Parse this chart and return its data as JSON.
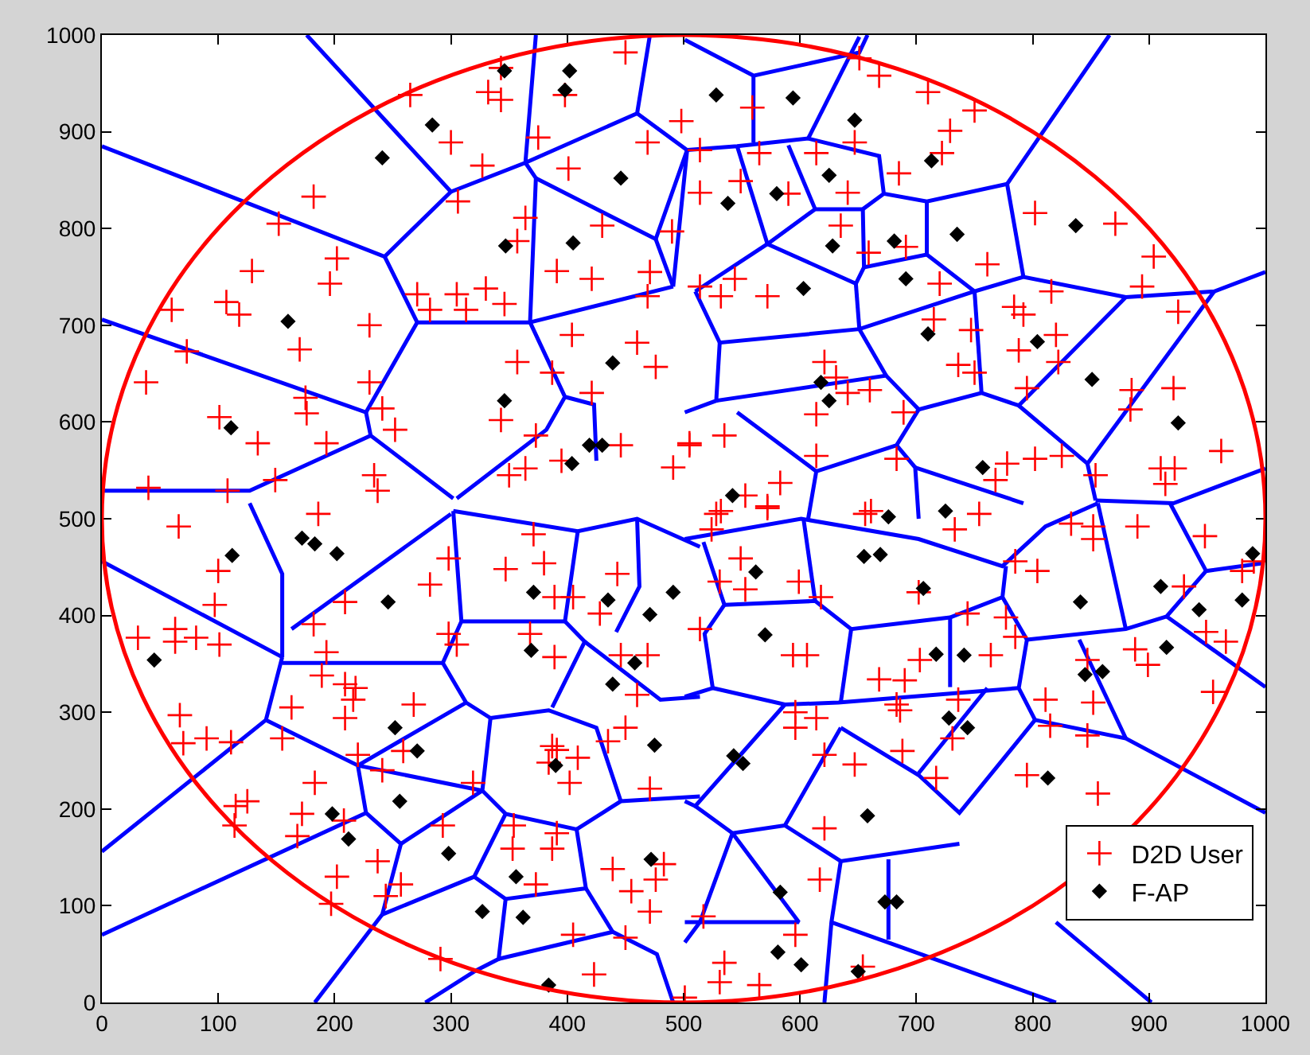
{
  "chart_data": {
    "type": "scatter",
    "xlim": [
      0,
      1000
    ],
    "ylim": [
      0,
      1000
    ],
    "xticks": [
      0,
      100,
      200,
      300,
      400,
      500,
      600,
      700,
      800,
      900,
      1000
    ],
    "yticks": [
      0,
      100,
      200,
      300,
      400,
      500,
      600,
      700,
      800,
      900,
      1000
    ],
    "legend": "bottom right",
    "series": [
      {
        "type": "line",
        "color": "#0000ff",
        "marker": "none",
        "x": [
          0,
          243,
          300,
          176,
          null,
          300,
          364,
          373,
          null,
          364,
          460,
          471,
          null,
          460,
          503,
          491,
          null,
          243,
          271,
          368,
          373,
          364,
          null,
          373,
          476,
          503,
          null,
          476,
          491,
          null,
          368,
          491,
          null,
          0,
          227,
          271,
          null,
          227,
          231,
          302,
          null,
          231,
          127,
          0,
          null,
          368,
          398,
          423,
          425,
          null,
          398,
          382,
          305
        ],
        "values": [
          885,
          771,
          838,
          1000,
          null,
          838,
          868,
          1000,
          null,
          868,
          919,
          1000,
          null,
          919,
          881,
          740,
          null,
          771,
          703,
          703,
          852,
          868,
          null,
          852,
          789,
          881,
          null,
          789,
          740,
          null,
          703,
          740,
          null,
          706,
          610,
          703,
          null,
          610,
          586,
          521,
          null,
          586,
          529,
          529,
          null,
          703,
          626,
          618,
          560,
          null,
          626,
          592,
          521
        ]
      },
      {
        "type": "line",
        "color": "#0000ff",
        "marker": "none",
        "x": [
          501,
          560,
          651,
          658,
          null,
          560,
          560,
          null,
          501,
          546,
          607,
          668,
          672,
          709,
          778,
          866,
          null,
          607,
          651,
          null,
          546,
          572,
          null,
          572,
          613,
          654,
          672,
          null,
          613,
          590,
          null,
          654,
          655,
          709,
          709,
          null,
          709,
          750,
          792,
          880,
          956,
          1000,
          null,
          778,
          792,
          null,
          572,
          648,
          655,
          null,
          572,
          510,
          null,
          510,
          531,
          651,
          750,
          null,
          651,
          648,
          null,
          750,
          756,
          null,
          531,
          528,
          501,
          null,
          528,
          674,
          702,
          756,
          788,
          880,
          null,
          674,
          651,
          null,
          788,
          847,
          854,
          null,
          847,
          956,
          null,
          854,
          921,
          1000,
          null,
          702,
          683,
          614,
          607,
          null,
          546,
          614,
          null,
          683,
          699,
          702,
          null,
          699,
          792
        ],
        "values": [
          995,
          958,
          982,
          1000,
          null,
          958,
          889,
          null,
          881,
          885,
          893,
          875,
          836,
          828,
          846,
          1000,
          null,
          893,
          998,
          null,
          885,
          784,
          null,
          784,
          820,
          820,
          836,
          null,
          820,
          886,
          null,
          820,
          760,
          773,
          828,
          null,
          773,
          735,
          750,
          729,
          735,
          755,
          null,
          846,
          750,
          null,
          784,
          743,
          760,
          null,
          784,
          735,
          null,
          735,
          682,
          696,
          735,
          null,
          696,
          743,
          null,
          735,
          630,
          null,
          682,
          622,
          610,
          null,
          622,
          648,
          613,
          630,
          617,
          729,
          null,
          648,
          696,
          null,
          617,
          557,
          519,
          null,
          557,
          735,
          null,
          519,
          516,
          552,
          null,
          613,
          576,
          549,
          500,
          null,
          610,
          549,
          null,
          576,
          553,
          500,
          null,
          553,
          516
        ]
      },
      {
        "type": "line",
        "color": "#0000ff",
        "marker": "none",
        "x": [
          0,
          155,
          null,
          155,
          155,
          127,
          null,
          155,
          141,
          0,
          null,
          155,
          293,
          309,
          302,
          null,
          163,
          300,
          null,
          309,
          398,
          409,
          null,
          302,
          409,
          460,
          514,
          null,
          460,
          462,
          442,
          null,
          398,
          415,
          387,
          null,
          415,
          480,
          514,
          null,
          293,
          313,
          334,
          null,
          141,
          220,
          227,
          0,
          null,
          220,
          313,
          null,
          220,
          327,
          null,
          334,
          327,
          347,
          408,
          446,
          514,
          null,
          334,
          384,
          425,
          446,
          null,
          227,
          257,
          241,
          null,
          257,
          327,
          null,
          347,
          320,
          241,
          null,
          320,
          347,
          341,
          320,
          null,
          347,
          416,
          408,
          null,
          341,
          439,
          477,
          491,
          null,
          416,
          439,
          null,
          241,
          183,
          null,
          320,
          278
        ],
        "values": [
          456,
          357,
          null,
          357,
          443,
          516,
          null,
          357,
          292,
          156,
          null,
          351,
          351,
          394,
          508,
          null,
          386,
          505,
          null,
          394,
          394,
          487,
          null,
          508,
          487,
          500,
          471,
          null,
          500,
          430,
          383,
          null,
          394,
          373,
          305,
          null,
          373,
          313,
          316,
          null,
          351,
          310,
          294,
          null,
          292,
          245,
          196,
          70,
          null,
          245,
          310,
          null,
          245,
          219,
          null,
          294,
          219,
          195,
          179,
          208,
          213,
          null,
          294,
          302,
          284,
          208,
          null,
          196,
          164,
          91,
          null,
          164,
          219,
          null,
          195,
          130,
          91,
          null,
          130,
          107,
          45,
          32,
          null,
          107,
          118,
          179,
          null,
          45,
          73,
          50,
          0,
          null,
          118,
          73,
          null,
          91,
          0,
          null,
          32,
          0
        ]
      },
      {
        "type": "line",
        "color": "#0000ff",
        "marker": "none",
        "x": [
          501,
          601,
          702,
          774,
          811,
          856,
          null,
          517,
          535,
          518,
          525,
          501,
          null,
          535,
          613,
          644,
          729,
          774,
          777,
          null,
          613,
          603,
          null,
          644,
          635,
          null,
          729,
          729,
          null,
          774,
          795,
          788,
          802,
          null,
          525,
          587,
          633,
          788,
          null,
          795,
          880,
          915,
          949,
          997,
          null,
          880,
          856,
          null,
          949,
          918,
          null,
          915,
          1000,
          null,
          802,
          880,
          1000,
          null,
          840,
          880,
          null,
          802,
          737,
          702,
          635,
          null,
          761,
          702,
          null,
          587,
          510,
          501,
          null,
          510,
          542,
          587,
          635,
          null,
          587,
          635,
          737,
          null,
          635,
          627,
          621,
          null,
          676,
          676,
          null,
          542,
          599,
          501,
          null,
          627,
          820,
          null,
          542,
          514,
          501,
          null,
          820,
          902
        ],
        "values": [
          479,
          500,
          479,
          451,
          492,
          516,
          null,
          476,
          411,
          381,
          325,
          316,
          null,
          411,
          415,
          386,
          398,
          419,
          451,
          null,
          415,
          500,
          null,
          386,
          310,
          null,
          398,
          326,
          null,
          419,
          375,
          325,
          292,
          null,
          325,
          308,
          310,
          325,
          null,
          375,
          386,
          399,
          446,
          454,
          null,
          386,
          516,
          null,
          446,
          516,
          null,
          399,
          326,
          null,
          292,
          273,
          196,
          null,
          375,
          273,
          null,
          292,
          196,
          235,
          284,
          null,
          325,
          237,
          null,
          308,
          203,
          208,
          null,
          203,
          175,
          183,
          284,
          null,
          183,
          146,
          164,
          null,
          146,
          83,
          0,
          null,
          148,
          65,
          null,
          175,
          83,
          83,
          null,
          83,
          0,
          null,
          175,
          83,
          62,
          null,
          83,
          0
        ]
      },
      {
        "type": "scatter",
        "name": "D2D User",
        "color": "#ff0000",
        "marker": "cross",
        "x": [
          450,
          265,
          332,
          343,
          343,
          398,
          300,
          327,
          375,
          401,
          469,
          498,
          182,
          152,
          306,
          364,
          357,
          430,
          490,
          202,
          129,
          196,
          271,
          305,
          330,
          346,
          282,
          313,
          391,
          421,
          471,
          469,
          60,
          107,
          118,
          230,
          170,
          73,
          404,
          460,
          476,
          357,
          387,
          38,
          230,
          175,
          176,
          241,
          343,
          421,
          101,
          134,
          193,
          252,
          373,
          446,
          505,
          350,
          364,
          395,
          491,
          40,
          108,
          149,
          234,
          237,
          668,
          651,
          710,
          750,
          559,
          729,
          722,
          647,
          614,
          565,
          514,
          549,
          514,
          590,
          641,
          685,
          802,
          871,
          904,
          894,
          925,
          635,
          659,
          691,
          761,
          720,
          816,
          544,
          532,
          572,
          514,
          784,
          792,
          715,
          747,
          788,
          820,
          822,
          736,
          750,
          795,
          885,
          884,
          921,
          621,
          631,
          641,
          660,
          614,
          689,
          535,
          505,
          614,
          683,
          583,
          553,
          572,
          532,
          661,
          778,
          802,
          768,
          825,
          854,
          910,
          922,
          914,
          962,
          66,
          186,
          100,
          97,
          31,
          63,
          63,
          81,
          101,
          209,
          182,
          193,
          189,
          209,
          218,
          216,
          209,
          163,
          268,
          282,
          298,
          298,
          305,
          347,
          380,
          371,
          389,
          405,
          443,
          428,
          368,
          389,
          446,
          469,
          460,
          450,
          435,
          387,
          391,
          409,
          384,
          402,
          471,
          67,
          70,
          90,
          111,
          155,
          220,
          259,
          241,
          319,
          183,
          115,
          125,
          114,
          172,
          168,
          208,
          237,
          202,
          244,
          257,
          293,
          354,
          353,
          387,
          391,
          373,
          439,
          455,
          476,
          471,
          483,
          405,
          450,
          423,
          291,
          197,
          501,
          528,
          572,
          656,
          754,
          733,
          524,
          549,
          553,
          599,
          531,
          618,
          702,
          744,
          785,
          804,
          833,
          852,
          852,
          890,
          948,
          980,
          990,
          930,
          949,
          966,
          955,
          888,
          899,
          847,
          852,
          847,
          811,
          815,
          777,
          785,
          764,
          703,
          668,
          690,
          683,
          686,
          736,
          731,
          688,
          717,
          795,
          856,
          596,
          596,
          614,
          621,
          647,
          621,
          617,
          596,
          535,
          531,
          565,
          654,
          517,
          514,
          594,
          606
        ],
        "values": [
          982,
          938,
          941,
          933,
          966,
          938,
          889,
          865,
          894,
          862,
          889,
          911,
          833,
          805,
          828,
          811,
          787,
          803,
          797,
          769,
          756,
          743,
          732,
          732,
          738,
          722,
          716,
          716,
          756,
          748,
          755,
          730,
          716,
          724,
          711,
          700,
          675,
          673,
          690,
          682,
          657,
          662,
          651,
          641,
          641,
          625,
          609,
          614,
          602,
          630,
          605,
          578,
          578,
          592,
          586,
          576,
          578,
          545,
          552,
          560,
          553,
          532,
          529,
          540,
          545,
          529,
          958,
          976,
          941,
          922,
          925,
          901,
          878,
          889,
          878,
          878,
          881,
          849,
          837,
          836,
          837,
          857,
          816,
          805,
          771,
          740,
          714,
          803,
          775,
          781,
          763,
          743,
          735,
          748,
          730,
          730,
          740,
          719,
          711,
          706,
          695,
          674,
          690,
          662,
          659,
          651,
          635,
          633,
          613,
          635,
          662,
          646,
          630,
          633,
          608,
          610,
          586,
          576,
          565,
          562,
          537,
          524,
          513,
          508,
          508,
          557,
          562,
          540,
          565,
          545,
          552,
          552,
          536,
          570,
          492,
          505,
          446,
          411,
          377,
          386,
          373,
          377,
          370,
          414,
          391,
          362,
          338,
          329,
          325,
          313,
          294,
          305,
          308,
          432,
          459,
          381,
          370,
          448,
          454,
          484,
          419,
          419,
          443,
          402,
          381,
          357,
          359,
          359,
          318,
          284,
          270,
          265,
          261,
          253,
          248,
          227,
          221,
          297,
          268,
          273,
          269,
          273,
          256,
          260,
          240,
          227,
          227,
          203,
          208,
          183,
          195,
          172,
          188,
          146,
          130,
          110,
          122,
          183,
          183,
          159,
          159,
          175,
          122,
          138,
          115,
          127,
          94,
          143,
          70,
          67,
          29,
          45,
          102,
          5,
          505,
          511,
          505,
          505,
          489,
          489,
          459,
          427,
          435,
          435,
          419,
          424,
          402,
          456,
          446,
          495,
          492,
          479,
          492,
          482,
          446,
          456,
          430,
          383,
          373,
          321,
          365,
          349,
          354,
          310,
          276,
          313,
          286,
          398,
          378,
          359,
          354,
          334,
          333,
          308,
          302,
          313,
          273,
          260,
          232,
          235,
          216,
          300,
          284,
          294,
          256,
          246,
          180,
          127,
          70,
          41,
          21,
          18,
          37,
          89,
          386,
          359,
          359
        ]
      },
      {
        "type": "scatter",
        "name": "F-AP",
        "color": "#000000",
        "marker": "diamond",
        "x": [
          346,
          402,
          398,
          284,
          241,
          446,
          347,
          405,
          160,
          439,
          346,
          111,
          419,
          430,
          404,
          528,
          594,
          647,
          713,
          625,
          580,
          538,
          735,
          837,
          628,
          681,
          691,
          603,
          710,
          804,
          851,
          925,
          618,
          625,
          757,
          542,
          725,
          172,
          183,
          202,
          112,
          246,
          45,
          371,
          435,
          491,
          471,
          369,
          458,
          439,
          252,
          271,
          390,
          475,
          256,
          198,
          212,
          298,
          472,
          356,
          327,
          362,
          384,
          676,
          562,
          655,
          669,
          706,
          570,
          717,
          741,
          841,
          910,
          943,
          980,
          989,
          915,
          845,
          860,
          728,
          744,
          543,
          551,
          813,
          658,
          583,
          673,
          683,
          581,
          601,
          650
        ],
        "values": [
          963,
          963,
          943,
          907,
          873,
          852,
          782,
          785,
          704,
          661,
          622,
          594,
          576,
          576,
          557,
          938,
          935,
          912,
          870,
          855,
          836,
          826,
          794,
          803,
          782,
          787,
          748,
          738,
          691,
          683,
          644,
          599,
          641,
          622,
          553,
          524,
          508,
          480,
          474,
          464,
          462,
          414,
          354,
          424,
          416,
          424,
          401,
          364,
          351,
          329,
          284,
          260,
          245,
          266,
          208,
          195,
          169,
          154,
          148,
          130,
          94,
          88,
          18,
          502,
          445,
          461,
          463,
          428,
          380,
          360,
          359,
          414,
          430,
          406,
          416,
          464,
          367,
          339,
          342,
          294,
          284,
          255,
          247,
          232,
          193,
          114,
          104,
          104,
          52,
          39,
          32
        ]
      }
    ]
  }
}
